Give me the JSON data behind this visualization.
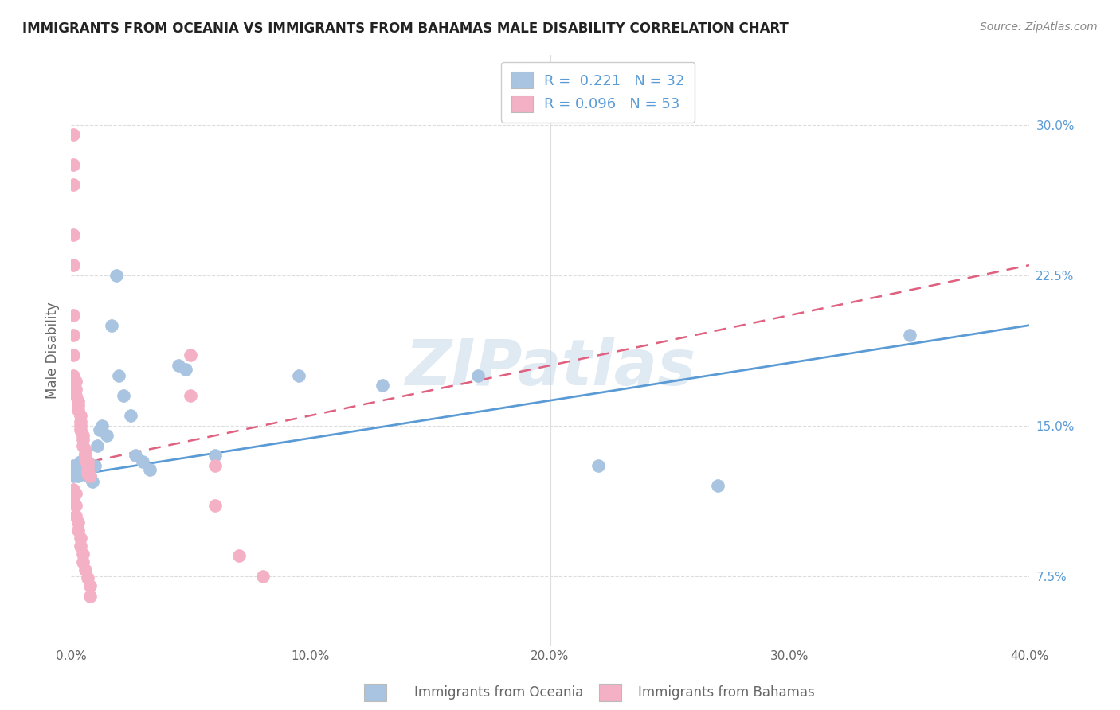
{
  "title": "IMMIGRANTS FROM OCEANIA VS IMMIGRANTS FROM BAHAMAS MALE DISABILITY CORRELATION CHART",
  "source": "Source: ZipAtlas.com",
  "ylabel": "Male Disability",
  "ytick_labels": [
    "7.5%",
    "15.0%",
    "22.5%",
    "30.0%"
  ],
  "ytick_values": [
    0.075,
    0.15,
    0.225,
    0.3
  ],
  "xtick_labels": [
    "0.0%",
    "10.0%",
    "20.0%",
    "30.0%",
    "40.0%"
  ],
  "xtick_values": [
    0.0,
    0.1,
    0.2,
    0.3,
    0.4
  ],
  "xlim": [
    0.0,
    0.4
  ],
  "ylim": [
    0.04,
    0.335
  ],
  "legend_r1": "R =  0.221",
  "legend_n1": "N = 32",
  "legend_r2": "R = 0.096",
  "legend_n2": "N = 53",
  "color_oceania": "#a8c4e0",
  "color_bahamas": "#f4b0c4",
  "color_line_oceania": "#5b9bd5",
  "color_line_bahamas": "#e06080",
  "watermark": "ZIPatlas",
  "oceania_x": [
    0.001,
    0.001,
    0.002,
    0.003,
    0.004,
    0.005,
    0.006,
    0.007,
    0.008,
    0.009,
    0.01,
    0.011,
    0.012,
    0.013,
    0.015,
    0.017,
    0.019,
    0.02,
    0.022,
    0.025,
    0.027,
    0.03,
    0.033,
    0.045,
    0.048,
    0.06,
    0.095,
    0.13,
    0.17,
    0.22,
    0.27,
    0.35
  ],
  "oceania_y": [
    0.13,
    0.125,
    0.128,
    0.125,
    0.132,
    0.127,
    0.13,
    0.125,
    0.125,
    0.122,
    0.13,
    0.14,
    0.148,
    0.15,
    0.145,
    0.2,
    0.225,
    0.175,
    0.165,
    0.155,
    0.135,
    0.132,
    0.128,
    0.18,
    0.178,
    0.135,
    0.175,
    0.17,
    0.175,
    0.13,
    0.12,
    0.195
  ],
  "bahamas_x": [
    0.001,
    0.001,
    0.002,
    0.002,
    0.002,
    0.003,
    0.003,
    0.003,
    0.004,
    0.004,
    0.004,
    0.004,
    0.005,
    0.005,
    0.005,
    0.006,
    0.006,
    0.006,
    0.006,
    0.007,
    0.007,
    0.007,
    0.007,
    0.007,
    0.008,
    0.001,
    0.001,
    0.001,
    0.001,
    0.001,
    0.001,
    0.001,
    0.001,
    0.001,
    0.002,
    0.002,
    0.002,
    0.003,
    0.003,
    0.004,
    0.004,
    0.005,
    0.005,
    0.006,
    0.007,
    0.008,
    0.008,
    0.05,
    0.05,
    0.06,
    0.06,
    0.07,
    0.08
  ],
  "bahamas_y": [
    0.185,
    0.175,
    0.172,
    0.168,
    0.165,
    0.162,
    0.16,
    0.158,
    0.155,
    0.152,
    0.15,
    0.148,
    0.145,
    0.143,
    0.14,
    0.138,
    0.136,
    0.135,
    0.133,
    0.132,
    0.13,
    0.128,
    0.127,
    0.126,
    0.125,
    0.295,
    0.28,
    0.27,
    0.245,
    0.23,
    0.205,
    0.195,
    0.118,
    0.112,
    0.116,
    0.11,
    0.105,
    0.102,
    0.098,
    0.094,
    0.09,
    0.086,
    0.082,
    0.078,
    0.074,
    0.07,
    0.065,
    0.185,
    0.165,
    0.13,
    0.11,
    0.085,
    0.075
  ]
}
